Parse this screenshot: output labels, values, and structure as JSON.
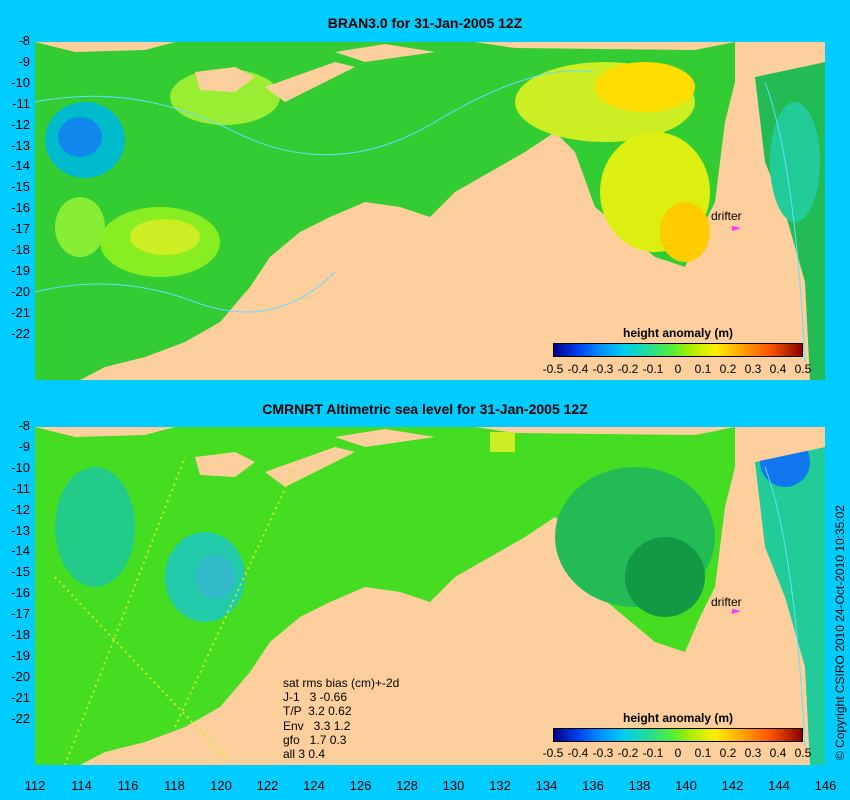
{
  "titles": {
    "top": "BRAN3.0 for 31-Jan-2005 12Z",
    "bottom": "CMRNRT Altimetric sea level  for 31-Jan-2005 12Z"
  },
  "y_ticks": [
    "-8",
    "-9",
    "-10",
    "-11",
    "-12",
    "-13",
    "-14",
    "-15",
    "-16",
    "-17",
    "-18",
    "-19",
    "-20",
    "-21",
    "-22"
  ],
  "x_ticks": [
    "112",
    "114",
    "116",
    "118",
    "120",
    "122",
    "124",
    "126",
    "128",
    "130",
    "132",
    "134",
    "136",
    "138",
    "140",
    "142",
    "144",
    "146"
  ],
  "legend": {
    "title": "height anomaly (m)",
    "labels": [
      "-0.5",
      "-0.4",
      "-0.3",
      "-0.2",
      "-0.1",
      "0",
      "0.1",
      "0.2",
      "0.3",
      "0.4",
      "0.5"
    ]
  },
  "drifter_label": "drifter",
  "stats_lines": [
    "sat rms bias (cm)+-2d",
    "J-1   3 -0.66",
    "T/P  3.2 0.62",
    "Env   3.3 1.2",
    "gfo   1.7 0.3",
    "all 3 0.4"
  ],
  "copyright": "© Copyright CSIRO 2010   24-Oct-2010 10:35:02",
  "colors": {
    "land": "#fccf9c",
    "ocean": "#33cc33",
    "background": "#00ccff",
    "drifter": "#ff33ff"
  }
}
